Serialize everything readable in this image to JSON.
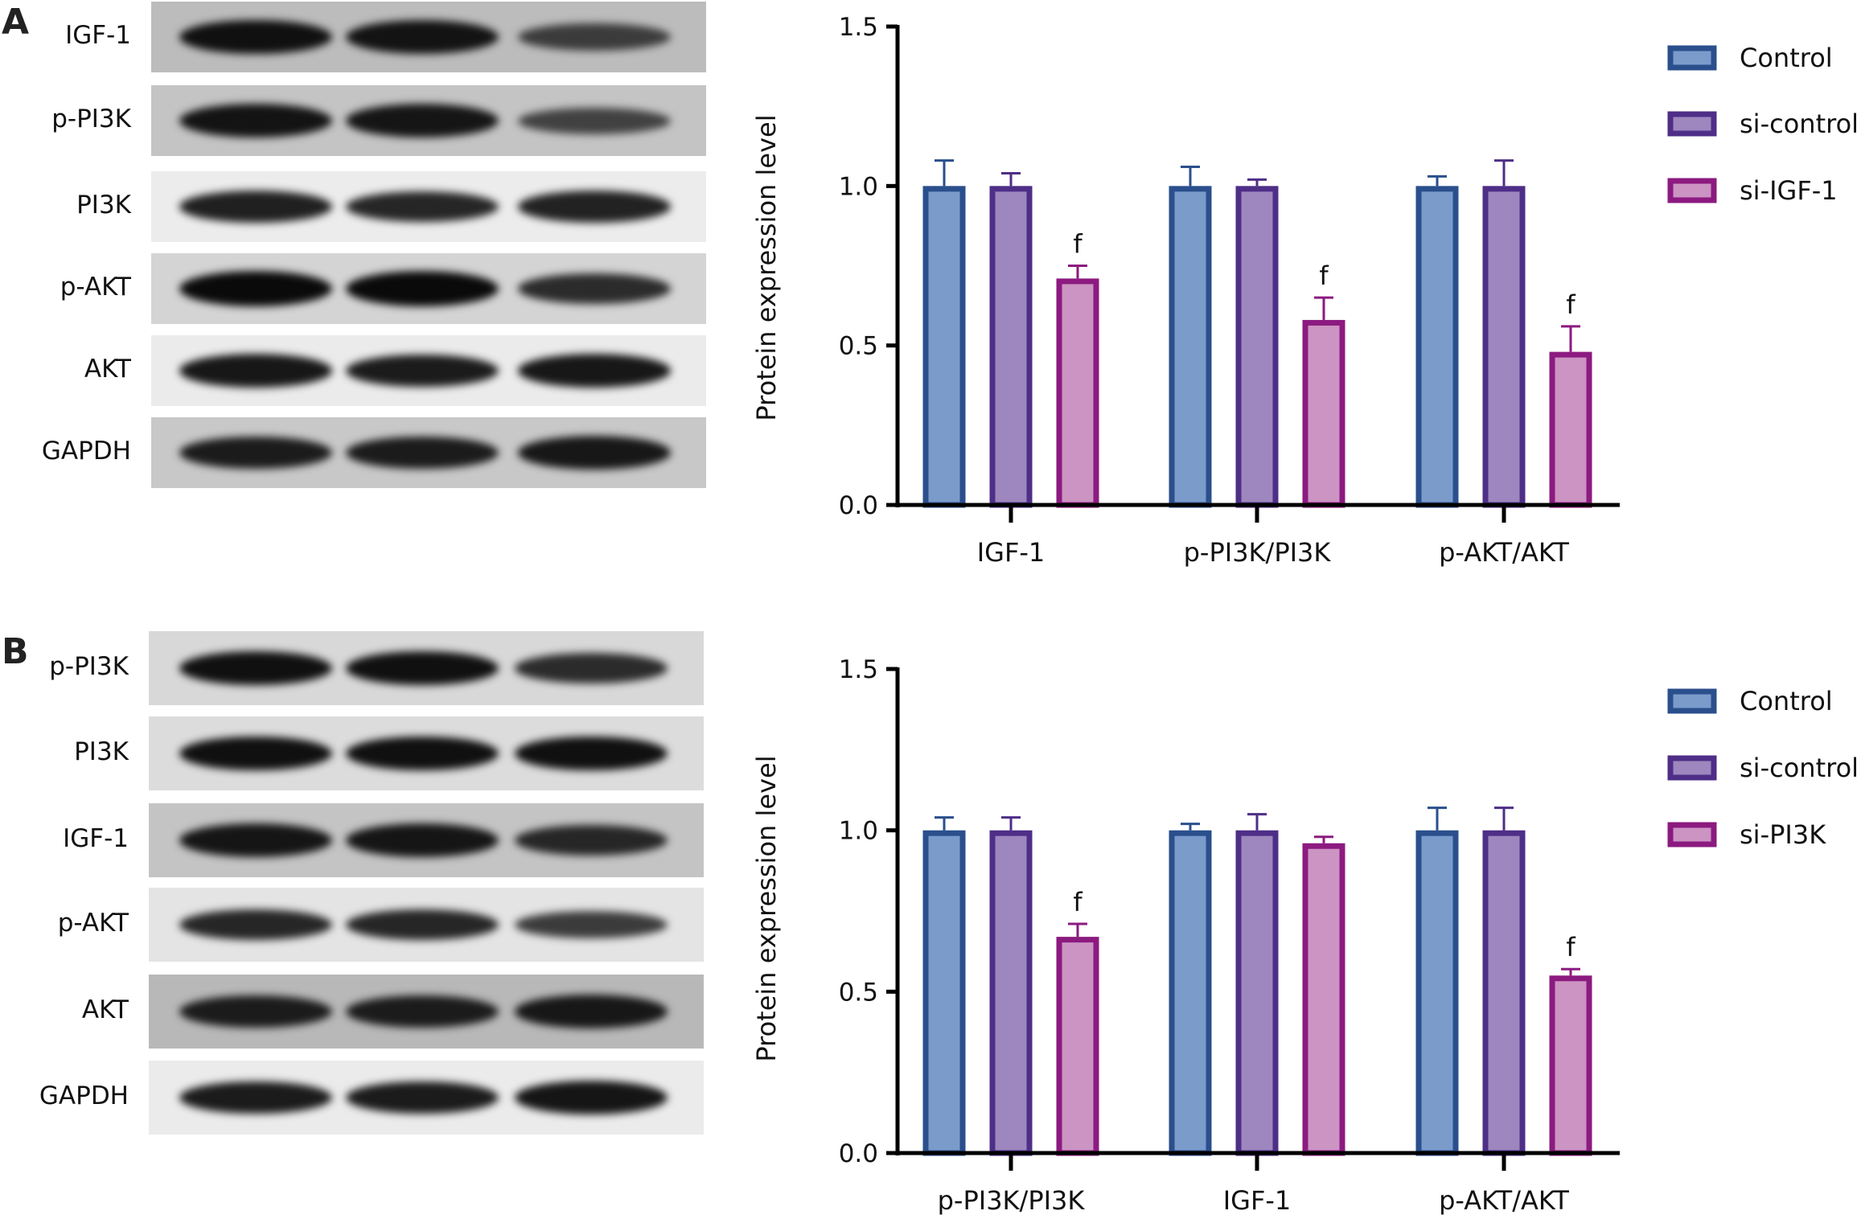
{
  "panels": [
    {
      "letter": "A",
      "blot": {
        "rows": [
          {
            "label": "IGF-1",
            "background": "#bcbcbc",
            "band_intensity": [
              0.95,
              0.92,
              0.55
            ]
          },
          {
            "label": "p-PI3K",
            "background": "#c4c4c4",
            "band_intensity": [
              0.92,
              0.9,
              0.5
            ]
          },
          {
            "label": "PI3K",
            "background": "#ececec",
            "band_intensity": [
              0.8,
              0.75,
              0.78
            ]
          },
          {
            "label": "p-AKT",
            "background": "#d4d4d4",
            "band_intensity": [
              1.0,
              1.0,
              0.7
            ]
          },
          {
            "label": "AKT",
            "background": "#ebebeb",
            "band_intensity": [
              0.88,
              0.85,
              0.88
            ]
          },
          {
            "label": "GAPDH",
            "background": "#c8c8c8",
            "band_intensity": [
              0.85,
              0.85,
              0.88
            ]
          }
        ]
      }
    },
    {
      "letter": "B",
      "blot": {
        "rows": [
          {
            "label": "p-PI3K",
            "background": "#d8d8d8",
            "band_intensity": [
              0.95,
              0.95,
              0.7
            ]
          },
          {
            "label": "PI3K",
            "background": "#dcdcdc",
            "band_intensity": [
              0.95,
              0.95,
              0.95
            ]
          },
          {
            "label": "IGF-1",
            "background": "#c4c4c4",
            "band_intensity": [
              0.9,
              0.9,
              0.75
            ]
          },
          {
            "label": "p-AKT",
            "background": "#e4e4e4",
            "band_intensity": [
              0.75,
              0.75,
              0.55
            ]
          },
          {
            "label": "AKT",
            "background": "#b8b8b8",
            "band_intensity": [
              0.85,
              0.85,
              0.88
            ]
          },
          {
            "label": "GAPDH",
            "background": "#ebebeb",
            "band_intensity": [
              0.85,
              0.85,
              0.9
            ]
          }
        ]
      }
    }
  ],
  "chart_data": [
    {
      "type": "bar",
      "ylabel": "Protein expression level",
      "ylim": [
        0,
        1.5
      ],
      "yticks": [
        "0.0",
        "0.5",
        "1.0",
        "1.5"
      ],
      "categories": [
        "IGF-1",
        "p-PI3K/PI3K",
        "p-AKT/AKT"
      ],
      "legend_position": "right",
      "series": [
        {
          "name": "Control",
          "fill": "#7b9bcb",
          "stroke": "#2a4f8c",
          "values": [
            1.0,
            1.0,
            1.0
          ],
          "errors": [
            0.08,
            0.06,
            0.03
          ],
          "annotations": [
            "",
            "",
            ""
          ]
        },
        {
          "name": "si-control",
          "fill": "#9d87be",
          "stroke": "#4e2e87",
          "values": [
            1.0,
            1.0,
            1.0
          ],
          "errors": [
            0.04,
            0.02,
            0.08
          ],
          "annotations": [
            "",
            "",
            ""
          ]
        },
        {
          "name": "si-IGF-1",
          "fill": "#cc94c3",
          "stroke": "#8c1a80",
          "values": [
            0.71,
            0.58,
            0.48
          ],
          "errors": [
            0.04,
            0.07,
            0.08
          ],
          "annotations": [
            "f",
            "f",
            "f"
          ]
        }
      ]
    },
    {
      "type": "bar",
      "ylabel": "Protein expression level",
      "ylim": [
        0,
        1.5
      ],
      "yticks": [
        "0.0",
        "0.5",
        "1.0",
        "1.5"
      ],
      "categories": [
        "p-PI3K/PI3K",
        "IGF-1",
        "p-AKT/AKT"
      ],
      "legend_position": "right",
      "series": [
        {
          "name": "Control",
          "fill": "#7b9bcb",
          "stroke": "#2a4f8c",
          "values": [
            1.0,
            1.0,
            1.0
          ],
          "errors": [
            0.04,
            0.02,
            0.07
          ],
          "annotations": [
            "",
            "",
            ""
          ]
        },
        {
          "name": "si-control",
          "fill": "#9d87be",
          "stroke": "#4e2e87",
          "values": [
            1.0,
            1.0,
            1.0
          ],
          "errors": [
            0.04,
            0.05,
            0.07
          ],
          "annotations": [
            "",
            "",
            ""
          ]
        },
        {
          "name": "si-PI3K",
          "fill": "#cc94c3",
          "stroke": "#8c1a80",
          "values": [
            0.67,
            0.96,
            0.55
          ],
          "errors": [
            0.04,
            0.02,
            0.02
          ],
          "annotations": [
            "f",
            "",
            "f"
          ]
        }
      ]
    }
  ]
}
